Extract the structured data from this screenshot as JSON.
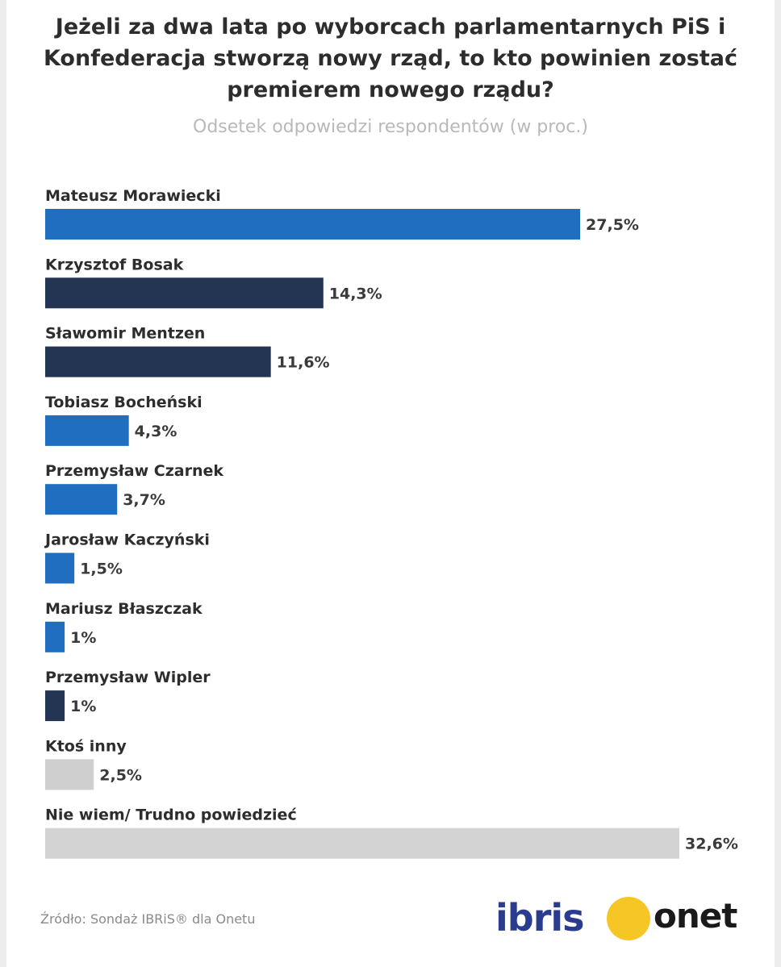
{
  "chart_data": {
    "type": "bar",
    "orientation": "horizontal",
    "title": "Jeżeli za dwa lata po wyborcach parlamentarnych PiS i Konfederacja stworzą nowy rząd, to kto powinien zostać premierem nowego rządu?",
    "subtitle": "Odsetek odpowiedzi respondentów (w proc.)",
    "xlim": [
      0,
      32.6
    ],
    "categories": [
      "Mateusz Morawiecki",
      "Krzysztof Bosak",
      "Sławomir Mentzen",
      "Tobiasz Bocheński",
      "Przemysław Czarnek",
      "Jarosław Kaczyński",
      "Mariusz Błaszczak",
      "Przemysław Wipler",
      "Ktoś inny",
      "Nie wiem/ Trudno powiedzieć"
    ],
    "values": [
      27.5,
      14.3,
      11.6,
      4.3,
      3.7,
      1.5,
      1,
      1,
      2.5,
      32.6
    ],
    "value_labels": [
      "27,5%",
      "14,3%",
      "11,6%",
      "4,3%",
      "3,7%",
      "1,5%",
      "1%",
      "1%",
      "2,5%",
      "32,6%"
    ],
    "bar_colors": [
      "#1f6ebf",
      "#233552",
      "#233552",
      "#1f6ebf",
      "#1f6ebf",
      "#1f6ebf",
      "#1f6ebf",
      "#233552",
      "#cfcfcf",
      "#d3d3d3"
    ]
  },
  "footer": {
    "source": "Źródło: Sondaż IBRiS® dla Onetu",
    "logo_ibris": "ibris",
    "logo_onet": "onet"
  },
  "colors": {
    "pis_blue": "#1f6ebf",
    "konfederacja_navy": "#233552",
    "other_gray": "#cfcfcf",
    "ibris_blue": "#2a3c8e",
    "onet_yellow": "#f6c626"
  }
}
